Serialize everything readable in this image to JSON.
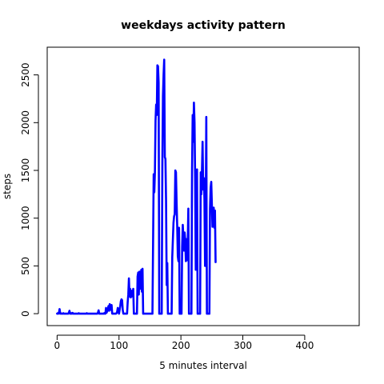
{
  "chart_data": {
    "type": "line",
    "title": "weekdays activity pattern",
    "xlabel": "5 minutes interval",
    "ylabel": "steps",
    "xlim": [
      -16,
      488
    ],
    "ylim": [
      -125,
      2790
    ],
    "x_ticks": [
      0,
      100,
      200,
      300,
      400
    ],
    "y_ticks": [
      0,
      500,
      1000,
      1500,
      2000,
      2500
    ],
    "grid": false,
    "series": [
      {
        "color": "#0000ff",
        "points": [
          [
            0,
            0
          ],
          [
            1,
            5
          ],
          [
            2,
            0
          ],
          [
            3,
            10
          ],
          [
            4,
            48
          ],
          [
            5,
            0
          ],
          [
            6,
            5
          ],
          [
            7,
            0
          ],
          [
            8,
            0
          ],
          [
            9,
            0
          ],
          [
            10,
            5
          ],
          [
            11,
            0
          ],
          [
            12,
            0
          ],
          [
            13,
            0
          ],
          [
            14,
            0
          ],
          [
            15,
            0
          ],
          [
            16,
            0
          ],
          [
            17,
            0
          ],
          [
            18,
            0
          ],
          [
            19,
            10
          ],
          [
            20,
            30
          ],
          [
            21,
            0
          ],
          [
            22,
            0
          ],
          [
            23,
            5
          ],
          [
            24,
            0
          ],
          [
            25,
            8
          ],
          [
            26,
            0
          ],
          [
            27,
            0
          ],
          [
            28,
            0
          ],
          [
            29,
            0
          ],
          [
            30,
            0
          ],
          [
            31,
            0
          ],
          [
            32,
            0
          ],
          [
            33,
            0
          ],
          [
            34,
            0
          ],
          [
            35,
            5
          ],
          [
            36,
            0
          ],
          [
            37,
            0
          ],
          [
            38,
            0
          ],
          [
            39,
            0
          ],
          [
            40,
            0
          ],
          [
            41,
            0
          ],
          [
            42,
            0
          ],
          [
            43,
            0
          ],
          [
            44,
            0
          ],
          [
            45,
            0
          ],
          [
            46,
            0
          ],
          [
            47,
            0
          ],
          [
            48,
            5
          ],
          [
            49,
            0
          ],
          [
            50,
            0
          ],
          [
            51,
            0
          ],
          [
            52,
            0
          ],
          [
            53,
            0
          ],
          [
            54,
            0
          ],
          [
            55,
            0
          ],
          [
            56,
            0
          ],
          [
            57,
            0
          ],
          [
            58,
            0
          ],
          [
            59,
            0
          ],
          [
            60,
            0
          ],
          [
            61,
            0
          ],
          [
            62,
            0
          ],
          [
            63,
            0
          ],
          [
            64,
            0
          ],
          [
            65,
            0
          ],
          [
            66,
            10
          ],
          [
            67,
            35
          ],
          [
            68,
            0
          ],
          [
            69,
            0
          ],
          [
            70,
            0
          ],
          [
            71,
            0
          ],
          [
            72,
            0
          ],
          [
            73,
            0
          ],
          [
            74,
            0
          ],
          [
            75,
            0
          ],
          [
            76,
            5
          ],
          [
            77,
            0
          ],
          [
            78,
            0
          ],
          [
            79,
            60
          ],
          [
            80,
            10
          ],
          [
            81,
            30
          ],
          [
            82,
            50
          ],
          [
            83,
            80
          ],
          [
            84,
            30
          ],
          [
            85,
            100
          ],
          [
            86,
            80
          ],
          [
            87,
            40
          ],
          [
            88,
            90
          ],
          [
            89,
            0
          ],
          [
            90,
            0
          ],
          [
            91,
            0
          ],
          [
            92,
            0
          ],
          [
            93,
            0
          ],
          [
            94,
            0
          ],
          [
            95,
            0
          ],
          [
            96,
            5
          ],
          [
            97,
            20
          ],
          [
            98,
            60
          ],
          [
            99,
            20
          ],
          [
            100,
            0
          ],
          [
            101,
            40
          ],
          [
            102,
            80
          ],
          [
            103,
            130
          ],
          [
            104,
            150
          ],
          [
            105,
            140
          ],
          [
            106,
            40
          ],
          [
            107,
            0
          ],
          [
            108,
            0
          ],
          [
            109,
            0
          ],
          [
            110,
            0
          ],
          [
            111,
            0
          ],
          [
            112,
            0
          ],
          [
            113,
            0
          ],
          [
            114,
            120
          ],
          [
            115,
            200
          ],
          [
            116,
            370
          ],
          [
            117,
            180
          ],
          [
            118,
            260
          ],
          [
            119,
            170
          ],
          [
            120,
            200
          ],
          [
            121,
            240
          ],
          [
            122,
            180
          ],
          [
            123,
            260
          ],
          [
            124,
            0
          ],
          [
            125,
            0
          ],
          [
            126,
            0
          ],
          [
            127,
            0
          ],
          [
            128,
            0
          ],
          [
            129,
            0
          ],
          [
            130,
            390
          ],
          [
            131,
            430
          ],
          [
            132,
            200
          ],
          [
            133,
            440
          ],
          [
            134,
            260
          ],
          [
            135,
            300
          ],
          [
            136,
            460
          ],
          [
            137,
            230
          ],
          [
            138,
            470
          ],
          [
            139,
            0
          ],
          [
            140,
            0
          ],
          [
            141,
            0
          ],
          [
            142,
            0
          ],
          [
            143,
            0
          ],
          [
            144,
            0
          ],
          [
            145,
            0
          ],
          [
            146,
            0
          ],
          [
            147,
            0
          ],
          [
            148,
            0
          ],
          [
            149,
            0
          ],
          [
            150,
            0
          ],
          [
            151,
            0
          ],
          [
            152,
            0
          ],
          [
            153,
            0
          ],
          [
            154,
            0
          ],
          [
            155,
            700
          ],
          [
            156,
            1460
          ],
          [
            157,
            1270
          ],
          [
            158,
            1480
          ],
          [
            159,
            2020
          ],
          [
            160,
            2190
          ],
          [
            161,
            2080
          ],
          [
            162,
            2600
          ],
          [
            163,
            2590
          ],
          [
            164,
            2420
          ],
          [
            165,
            0
          ],
          [
            166,
            0
          ],
          [
            167,
            0
          ],
          [
            168,
            0
          ],
          [
            169,
            0
          ],
          [
            170,
            1550
          ],
          [
            171,
            2280
          ],
          [
            172,
            2500
          ],
          [
            173,
            2660
          ],
          [
            174,
            1640
          ],
          [
            175,
            1620
          ],
          [
            176,
            1180
          ],
          [
            177,
            300
          ],
          [
            178,
            530
          ],
          [
            179,
            0
          ],
          [
            180,
            0
          ],
          [
            181,
            0
          ],
          [
            182,
            0
          ],
          [
            183,
            0
          ],
          [
            184,
            0
          ],
          [
            185,
            0
          ],
          [
            186,
            590
          ],
          [
            187,
            770
          ],
          [
            188,
            950
          ],
          [
            189,
            1020
          ],
          [
            190,
            1040
          ],
          [
            191,
            1500
          ],
          [
            192,
            1480
          ],
          [
            193,
            1170
          ],
          [
            194,
            920
          ],
          [
            195,
            600
          ],
          [
            196,
            550
          ],
          [
            197,
            900
          ],
          [
            198,
            0
          ],
          [
            199,
            0
          ],
          [
            200,
            0
          ],
          [
            201,
            0
          ],
          [
            202,
            700
          ],
          [
            203,
            930
          ],
          [
            204,
            800
          ],
          [
            205,
            660
          ],
          [
            206,
            850
          ],
          [
            207,
            770
          ],
          [
            208,
            550
          ],
          [
            209,
            780
          ],
          [
            210,
            560
          ],
          [
            211,
            730
          ],
          [
            212,
            1100
          ],
          [
            213,
            0
          ],
          [
            214,
            0
          ],
          [
            215,
            0
          ],
          [
            216,
            0
          ],
          [
            217,
            0
          ],
          [
            218,
            1500
          ],
          [
            219,
            2080
          ],
          [
            220,
            1800
          ],
          [
            221,
            2210
          ],
          [
            222,
            2000
          ],
          [
            223,
            1400
          ],
          [
            224,
            460
          ],
          [
            225,
            1100
          ],
          [
            226,
            1510
          ],
          [
            227,
            0
          ],
          [
            228,
            0
          ],
          [
            229,
            0
          ],
          [
            230,
            0
          ],
          [
            231,
            0
          ],
          [
            232,
            1480
          ],
          [
            233,
            1250
          ],
          [
            234,
            1500
          ],
          [
            235,
            1800
          ],
          [
            236,
            1300
          ],
          [
            237,
            1420
          ],
          [
            238,
            1200
          ],
          [
            239,
            500
          ],
          [
            240,
            1000
          ],
          [
            241,
            2060
          ],
          [
            242,
            0
          ],
          [
            243,
            0
          ],
          [
            244,
            0
          ],
          [
            245,
            0
          ],
          [
            246,
            0
          ],
          [
            247,
            1100
          ],
          [
            248,
            1320
          ],
          [
            249,
            1380
          ],
          [
            250,
            1150
          ],
          [
            251,
            910
          ],
          [
            252,
            1000
          ],
          [
            253,
            1110
          ],
          [
            254,
            900
          ],
          [
            255,
            1080
          ],
          [
            256,
            540
          ]
        ]
      }
    ]
  }
}
